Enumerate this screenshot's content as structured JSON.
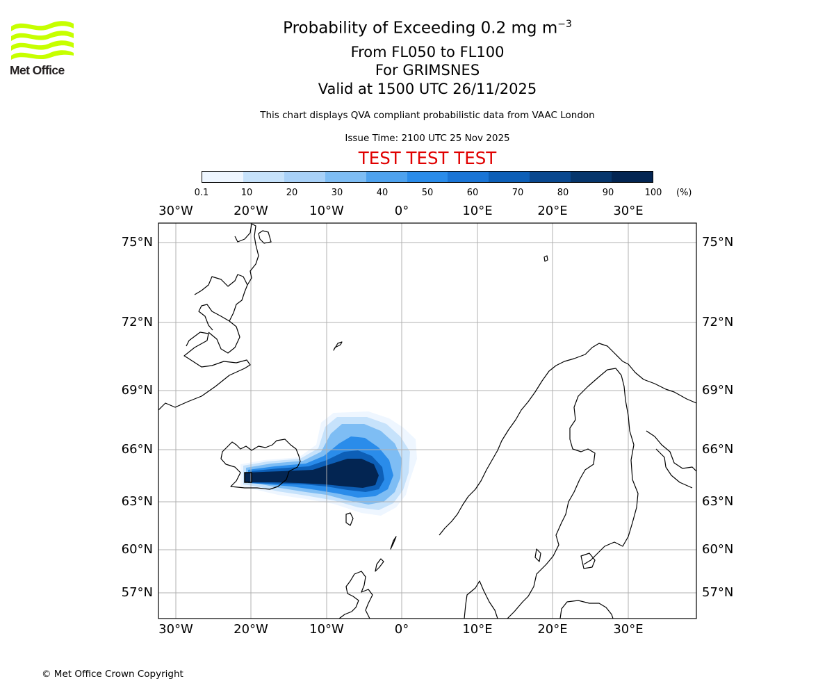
{
  "header": {
    "org_name": "Met Office",
    "title_main": "Probability of Exceeding 0.2 mg m",
    "title_exp": "−3",
    "level_range": "From FL050 to FL100",
    "volcano": "For GRIMSNES",
    "valid_time": "Valid at 1500 UTC 26/11/2025",
    "note": "This chart displays QVA compliant probabilistic data from VAAC London",
    "issue_time": "Issue Time: 2100 UTC 25 Nov 2025",
    "test_banner": "TEST TEST TEST"
  },
  "colorbar": {
    "ticks": [
      "0.1",
      "10",
      "20",
      "30",
      "40",
      "50",
      "60",
      "70",
      "80",
      "90",
      "100"
    ],
    "unit": "(%)",
    "colors": [
      "#eef6ff",
      "#c6e2fb",
      "#a8d1f8",
      "#7ebdf4",
      "#4ea2ee",
      "#2a8cea",
      "#1a75d6",
      "#0d5fb7",
      "#09488f",
      "#06366c",
      "#032552"
    ]
  },
  "chart_data": {
    "type": "heatmap",
    "title": "Probability of Exceeding 0.2 mg m−3",
    "projection": "Polar Stereographic (North Europe / North Atlantic)",
    "x_axis": {
      "labels": [
        "30°W",
        "20°W",
        "10°W",
        "0°",
        "10°E",
        "20°E",
        "30°E"
      ],
      "values_deg_lon": [
        -30,
        -20,
        -10,
        0,
        10,
        20,
        30
      ]
    },
    "y_axis": {
      "labels": [
        "75°N",
        "72°N",
        "69°N",
        "66°N",
        "63°N",
        "60°N",
        "57°N"
      ],
      "values_deg_lat": [
        75,
        72,
        69,
        66,
        63,
        60,
        57
      ]
    },
    "plume": {
      "source_name": "GRIMSNES",
      "extent_lon": [
        -21,
        2
      ],
      "extent_lat": [
        62.3,
        67.8
      ],
      "core_probability_pct": [
        90,
        100
      ],
      "levels_pct": [
        0.1,
        10,
        20,
        30,
        40,
        50,
        60,
        70,
        80,
        90,
        100
      ]
    },
    "gridlines": true
  },
  "footer": {
    "copyright": "© Met Office Crown Copyright"
  }
}
